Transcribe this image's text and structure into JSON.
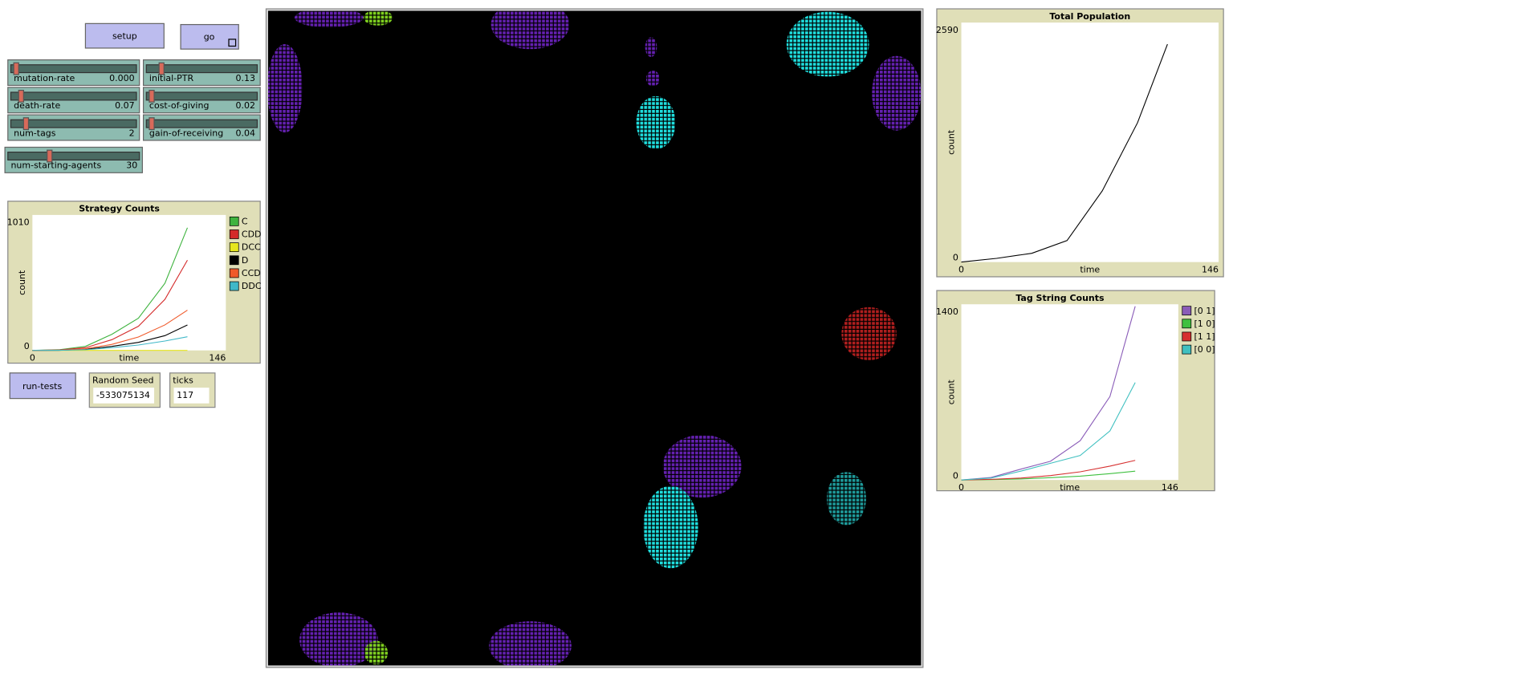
{
  "buttons": [
    "setup",
    "go",
    "run-tests"
  ],
  "sliders": [
    {
      "label": "mutation-rate",
      "value": "0.000"
    },
    {
      "label": "initial-PTR",
      "value": "0.13"
    },
    {
      "label": "death-rate",
      "value": "0.07"
    },
    {
      "label": "cost-of-giving",
      "value": "0.02"
    },
    {
      "label": "num-tags",
      "value": "2"
    },
    {
      "label": "gain-of-receiving",
      "value": "0.04"
    },
    {
      "label": "num-starting-agents",
      "value": "30"
    }
  ],
  "monitors": [
    {
      "label": "Random Seed",
      "value": "-533075134"
    },
    {
      "label": "ticks",
      "value": "117"
    }
  ],
  "plots": [
    {
      "title": "Strategy Counts",
      "xlabel": "time",
      "ylabel": "count",
      "xlim": [
        0,
        146
      ],
      "ylim": [
        0,
        1010
      ],
      "xticks": [
        0,
        146
      ],
      "yticks": [
        0,
        1010
      ],
      "x": [
        0,
        20,
        40,
        60,
        80,
        100,
        117
      ],
      "series": [
        {
          "name": "C",
          "color": "#3fb33f",
          "values": [
            0,
            5,
            30,
            120,
            240,
            500,
            915
          ]
        },
        {
          "name": "CDD",
          "color": "#d42a2a",
          "values": [
            0,
            3,
            20,
            80,
            180,
            380,
            673
          ]
        },
        {
          "name": "DCC",
          "color": "#e6e61e",
          "values": [
            0,
            0,
            0,
            0,
            0,
            0,
            0
          ]
        },
        {
          "name": "D",
          "color": "#000000",
          "values": [
            0,
            1,
            8,
            30,
            60,
            110,
            190
          ]
        },
        {
          "name": "CCD",
          "color": "#f0592a",
          "values": [
            0,
            2,
            12,
            45,
            100,
            190,
            300
          ]
        },
        {
          "name": "DDC",
          "color": "#3fb8c8",
          "values": [
            0,
            1,
            5,
            20,
            40,
            70,
            102
          ]
        }
      ]
    },
    {
      "title": "Total Population",
      "xlabel": "time",
      "ylabel": "count",
      "xlim": [
        0,
        146
      ],
      "ylim": [
        0,
        2590
      ],
      "xticks": [
        0,
        146
      ],
      "yticks": [
        0,
        2590
      ],
      "x": [
        0,
        20,
        40,
        60,
        80,
        100,
        117
      ],
      "series": [
        {
          "color": "#000000",
          "values": [
            0,
            40,
            95,
            233,
            770,
            1507,
            2356
          ]
        }
      ]
    },
    {
      "title": "Tag String Counts",
      "xlabel": "time",
      "ylabel": "count",
      "xlim": [
        0,
        146
      ],
      "ylim": [
        0,
        1400
      ],
      "xticks": [
        0,
        146
      ],
      "yticks": [
        0,
        1400
      ],
      "x": [
        0,
        20,
        40,
        60,
        80,
        100,
        117
      ],
      "series": [
        {
          "name": "[0 1]",
          "color": "#8a5cb8",
          "values": [
            0,
            20,
            86,
            149,
            313,
            665,
            1384
          ]
        },
        {
          "name": "[1 0]",
          "color": "#3fc03f",
          "values": [
            0,
            3,
            8,
            18,
            30,
            50,
            70
          ]
        },
        {
          "name": "[1 1]",
          "color": "#d63030",
          "values": [
            0,
            5,
            15,
            35,
            65,
            110,
            156
          ]
        },
        {
          "name": "[0 0]",
          "color": "#40c0c0",
          "values": [
            0,
            15,
            70,
            133,
            195,
            391,
            776
          ]
        }
      ]
    }
  ]
}
